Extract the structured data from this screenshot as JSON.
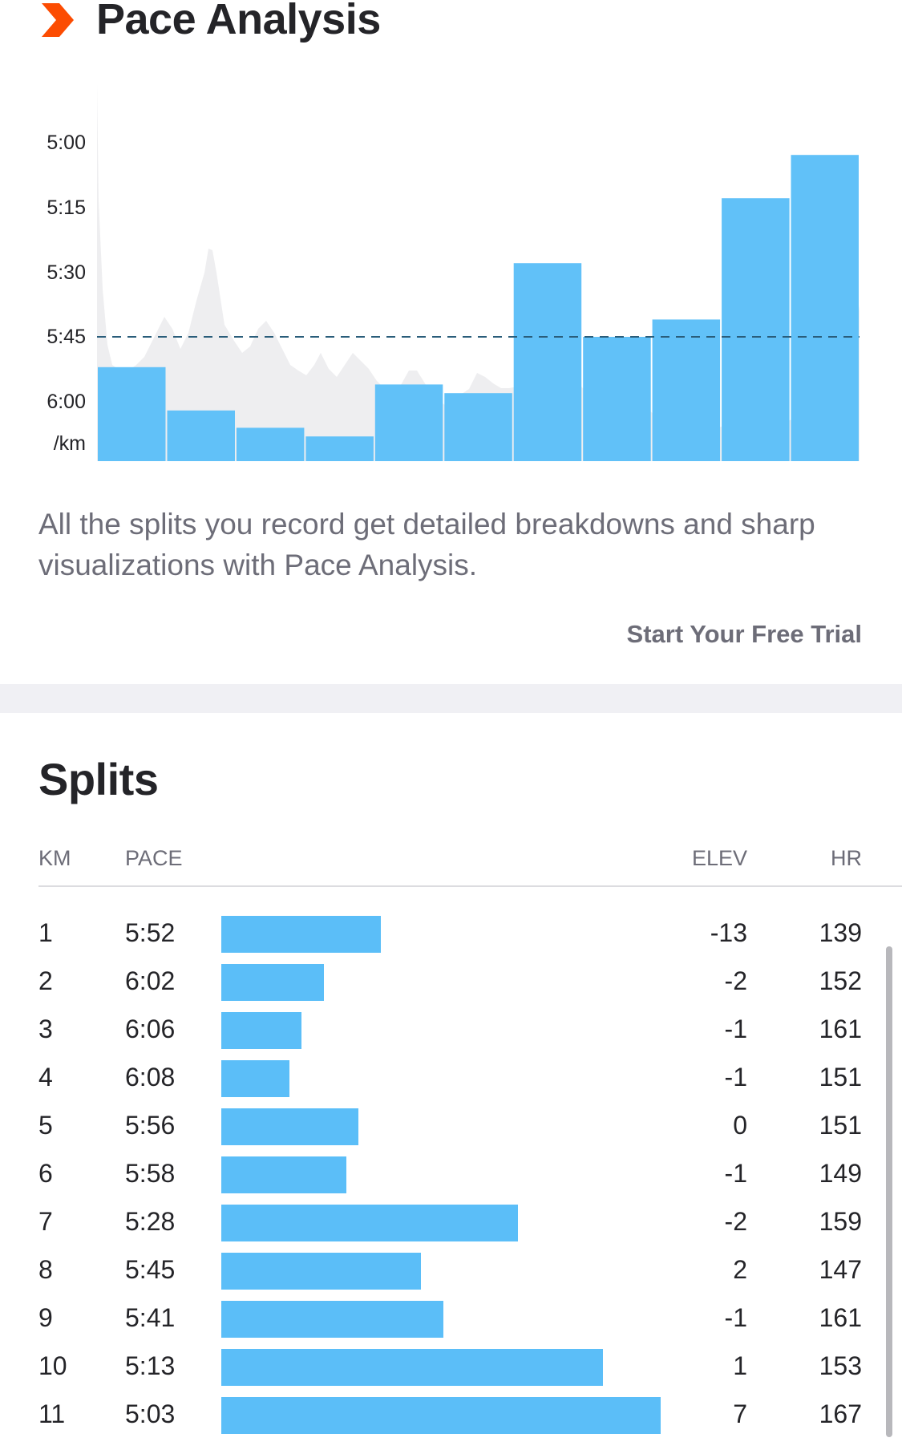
{
  "pace_analysis": {
    "title": "Pace Analysis",
    "icon": "chevron-icon",
    "accent_color": "#fc4c02",
    "bar_color": "#5bbef8",
    "description": "All the splits you record get detailed breakdowns and sharp visualizations with Pace Analysis.",
    "cta": "Start Your Free Trial"
  },
  "chart_data": {
    "type": "bar",
    "y_tick_labels": [
      "5:00",
      "5:15",
      "5:30",
      "5:45",
      "6:00"
    ],
    "y_unit": "/km",
    "y_axis_inverted": true,
    "y_range_seconds_per_km": [
      285,
      370
    ],
    "average_line_pace": "5:45",
    "categories": [
      "1",
      "2",
      "3",
      "4",
      "5",
      "6",
      "7",
      "8",
      "9",
      "10",
      "11"
    ],
    "values": [
      "5:52",
      "6:02",
      "6:06",
      "6:08",
      "5:56",
      "5:58",
      "5:28",
      "5:45",
      "5:41",
      "5:13",
      "5:03"
    ],
    "elevation_background": true,
    "grid": false,
    "legend": "none"
  },
  "splits": {
    "title": "Splits",
    "columns": {
      "km": "KM",
      "pace": "PACE",
      "elev": "ELEV",
      "hr": "HR"
    },
    "max_pace": "6:20",
    "min_pace": "4:50",
    "rows": [
      {
        "km": "1",
        "pace": "5:52",
        "elev": "-13",
        "hr": "139"
      },
      {
        "km": "2",
        "pace": "6:02",
        "elev": "-2",
        "hr": "152"
      },
      {
        "km": "3",
        "pace": "6:06",
        "elev": "-1",
        "hr": "161"
      },
      {
        "km": "4",
        "pace": "6:08",
        "elev": "-1",
        "hr": "151"
      },
      {
        "km": "5",
        "pace": "5:56",
        "elev": "0",
        "hr": "151"
      },
      {
        "km": "6",
        "pace": "5:58",
        "elev": "-1",
        "hr": "149"
      },
      {
        "km": "7",
        "pace": "5:28",
        "elev": "-2",
        "hr": "159"
      },
      {
        "km": "8",
        "pace": "5:45",
        "elev": "2",
        "hr": "147"
      },
      {
        "km": "9",
        "pace": "5:41",
        "elev": "-1",
        "hr": "161"
      },
      {
        "km": "10",
        "pace": "5:13",
        "elev": "1",
        "hr": "153"
      },
      {
        "km": "11",
        "pace": "5:03",
        "elev": "7",
        "hr": "167"
      }
    ]
  }
}
